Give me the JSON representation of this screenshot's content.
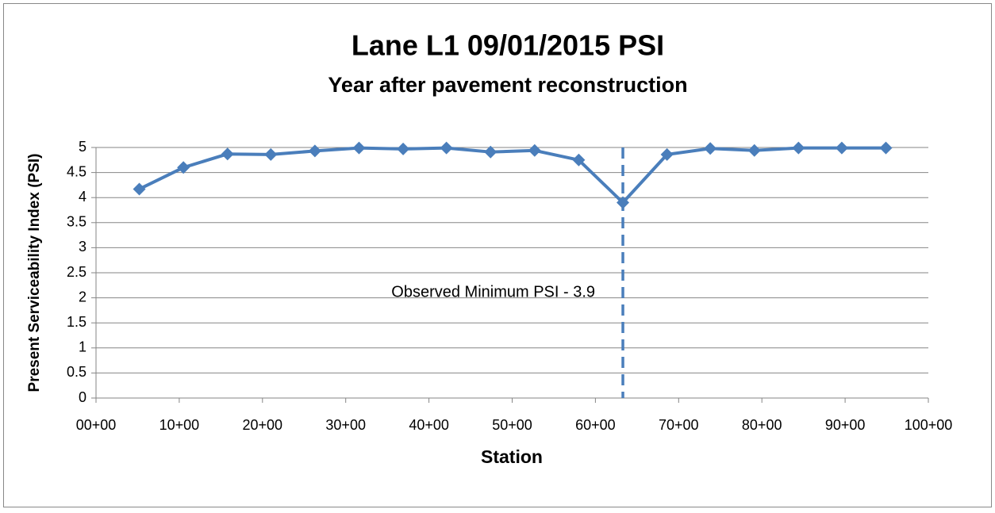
{
  "chart_data": {
    "type": "line",
    "title": "Lane L1 09/01/2015 PSI",
    "subtitle": "Year after pavement reconstruction",
    "x_label": "Station",
    "y_label": "Present Serviceability Index (PSI)",
    "x": [
      520,
      1050,
      1580,
      2100,
      2630,
      3160,
      3690,
      4210,
      4740,
      5270,
      5800,
      6330,
      6860,
      7380,
      7910,
      8440,
      8960,
      9490
    ],
    "series": [
      {
        "color": "#4a7ebb",
        "values": [
          4.17,
          4.6,
          4.87,
          4.86,
          4.93,
          4.99,
          4.97,
          4.99,
          4.91,
          4.94,
          4.75,
          3.9,
          4.86,
          4.98,
          4.94,
          4.99,
          4.99,
          4.99
        ]
      }
    ],
    "xlim": [
      0,
      10000
    ],
    "xticks": [
      {
        "value": 0,
        "label": "00+00"
      },
      {
        "value": 1000,
        "label": "10+00"
      },
      {
        "value": 2000,
        "label": "20+00"
      },
      {
        "value": 3000,
        "label": "30+00"
      },
      {
        "value": 4000,
        "label": "40+00"
      },
      {
        "value": 5000,
        "label": "50+00"
      },
      {
        "value": 6000,
        "label": "60+00"
      },
      {
        "value": 7000,
        "label": "70+00"
      },
      {
        "value": 8000,
        "label": "80+00"
      },
      {
        "value": 9000,
        "label": "90+00"
      },
      {
        "value": 10000,
        "label": "100+00"
      }
    ],
    "ylim": [
      0,
      5
    ],
    "yticks": [
      0,
      0.5,
      1,
      1.5,
      2,
      2.5,
      3,
      3.5,
      4,
      4.5,
      5
    ],
    "grid": true,
    "annotations": [
      {
        "text": "Observed Minimum PSI - 3.9",
        "x": 6330,
        "color": "#4a7ebb"
      }
    ]
  }
}
